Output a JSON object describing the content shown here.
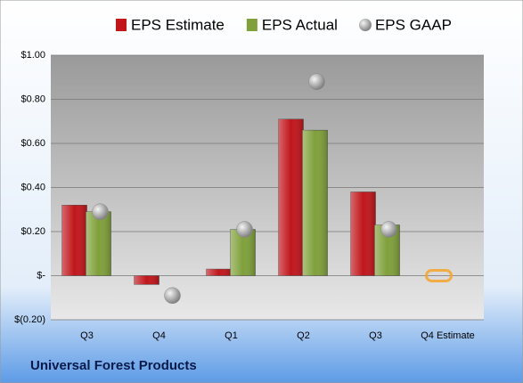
{
  "chart_data": {
    "type": "bar",
    "categories": [
      "Q3",
      "Q4",
      "Q1",
      "Q2",
      "Q3",
      "Q4 Estimate"
    ],
    "series": [
      {
        "name": "EPS Estimate",
        "color": "#c0161c",
        "point_colors": [
          "#c0161c",
          "#c0161c",
          "#c0161c",
          "#c0161c",
          "#c0161c",
          "#f5a32a"
        ],
        "values": [
          0.32,
          -0.04,
          0.03,
          0.71,
          0.38,
          0.0
        ]
      },
      {
        "name": "EPS Actual",
        "color": "#7fa03a",
        "values": [
          0.29,
          null,
          0.21,
          0.66,
          0.23,
          null
        ]
      },
      {
        "name": "EPS GAAP",
        "color": "#a6a6a6",
        "marker": "circle",
        "values": [
          0.29,
          -0.09,
          0.21,
          0.88,
          0.21,
          null
        ]
      }
    ],
    "ylim": [
      -0.2,
      1.0
    ],
    "yticks": [
      {
        "value": -0.2,
        "label": "$(0.20)"
      },
      {
        "value": 0,
        "label": "$-"
      },
      {
        "value": 0.2,
        "label": "$0.20"
      },
      {
        "value": 0.4,
        "label": "$0.40"
      },
      {
        "value": 0.6,
        "label": "$0.60"
      },
      {
        "value": 0.8,
        "label": "$0.80"
      },
      {
        "value": 1.0,
        "label": "$1.00"
      }
    ],
    "grid": true,
    "legend": "top",
    "footer": "Universal Forest Products"
  }
}
